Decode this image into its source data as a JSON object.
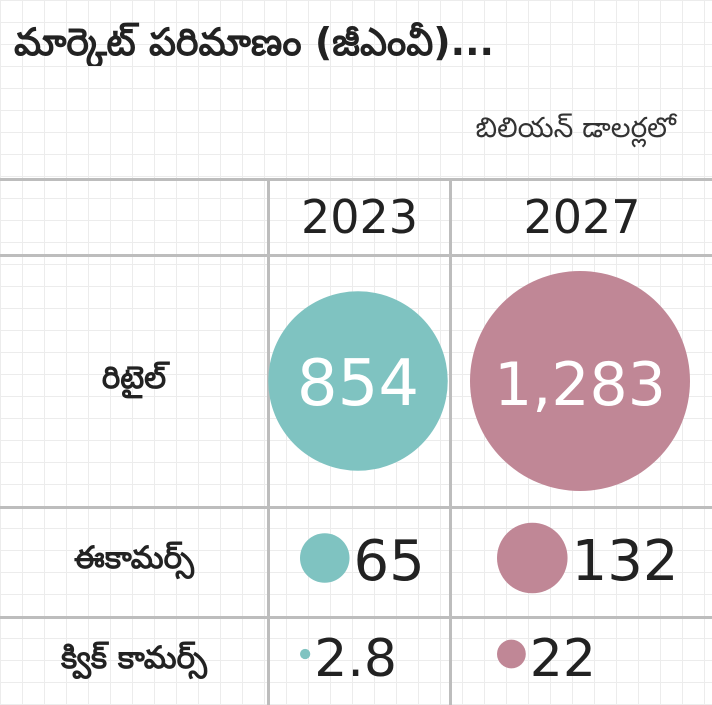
{
  "title": "మార్కెట్ పరిమాణం (జీఎంవీ)...",
  "unit": "బిలియన్ డాలర్లలో",
  "colors": {
    "y2023": "#7fc3c1",
    "y2027": "#c08796",
    "grid": "#bdbdbd",
    "text": "#222222"
  },
  "chart_data": {
    "type": "bubble-table",
    "title": "మార్కెట్ పరిమాణం (జీఎంవీ)...",
    "unit": "బిలియన్ డాలర్లలో",
    "columns": [
      "2023",
      "2027"
    ],
    "rows": [
      {
        "label": "రిటైల్",
        "values": [
          854,
          1283
        ],
        "display": [
          "854",
          "1,283"
        ]
      },
      {
        "label": "ఈకామర్స్",
        "values": [
          65,
          132
        ],
        "display": [
          "65",
          "132"
        ]
      },
      {
        "label": "క్విక్ కామర్స్",
        "values": [
          2.8,
          22
        ],
        "display": [
          "2.8",
          "22"
        ]
      }
    ]
  }
}
